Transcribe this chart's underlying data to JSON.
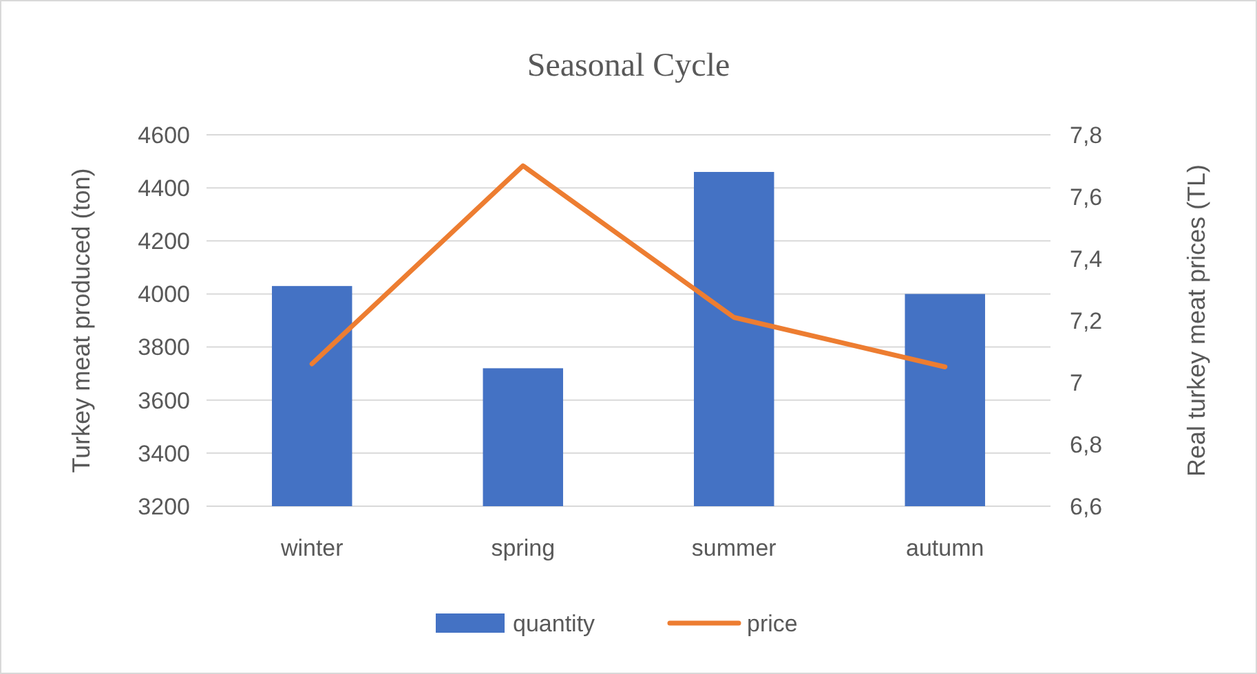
{
  "chart_data": {
    "type": "bar",
    "title": "Seasonal Cycle",
    "ylabel": "Turkey meat produced (ton)",
    "y2label": "Real turkey meat prices (TL)",
    "categories": [
      "winter",
      "spring",
      "summer",
      "autumn"
    ],
    "series": [
      {
        "name": "quantity",
        "color": "#4472c4",
        "values": [
          4030,
          3720,
          4460,
          4000
        ]
      },
      {
        "name": "price",
        "type": "line",
        "axis": "y2",
        "color": "#ed7d31",
        "values": [
          7.06,
          7.7,
          7.21,
          7.05
        ]
      }
    ],
    "ylim": [
      3200,
      4600
    ],
    "yticks": [
      3200,
      3400,
      3600,
      3800,
      4000,
      4200,
      4400,
      4600
    ],
    "y2lim": [
      6.6,
      7.8
    ],
    "y2ticks": [
      {
        "value": 6.6,
        "label": "6,6"
      },
      {
        "value": 6.8,
        "label": "6,8"
      },
      7,
      {
        "value": 7.2,
        "label": "7,2"
      },
      {
        "value": 7.4,
        "label": "7,4"
      },
      {
        "value": 7.6,
        "label": "7,6"
      },
      {
        "value": 7.8,
        "label": "7,8"
      }
    ],
    "grid": "y",
    "legend": "bottom",
    "marker": "none",
    "line_style": "solid"
  }
}
